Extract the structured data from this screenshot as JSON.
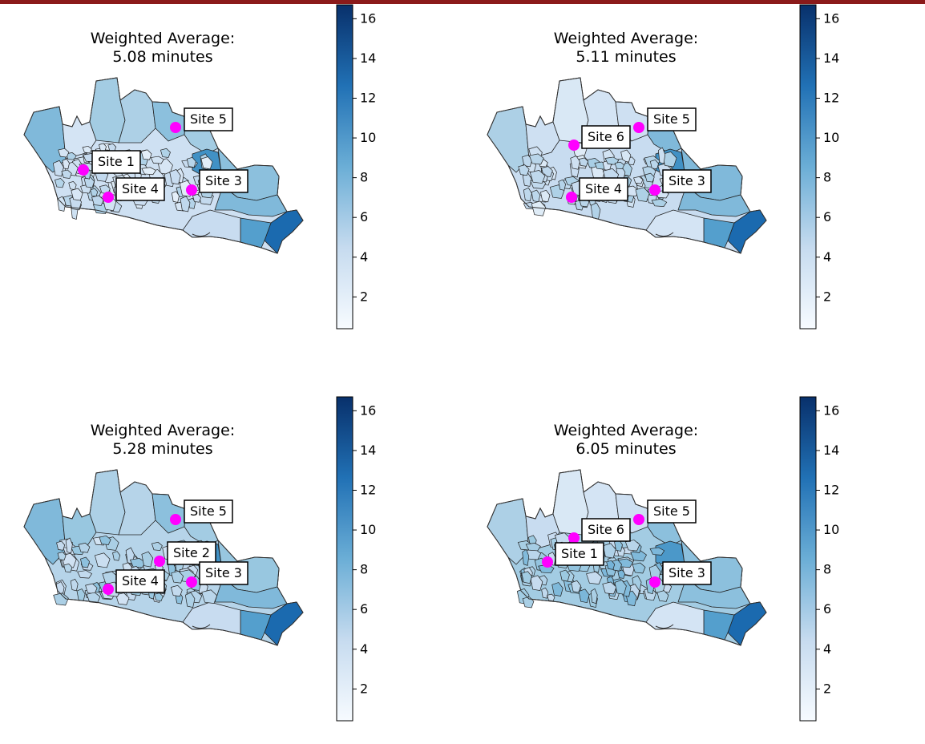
{
  "figure": {
    "colormap": "Blues",
    "colorbar": {
      "min": 0.4,
      "max": 16.7,
      "ticks": [
        2,
        4,
        6,
        8,
        10,
        12,
        14,
        16
      ]
    },
    "marker_color": "#ff00ff",
    "region_edge_color": "#222222"
  },
  "panels": [
    {
      "title_line1": "Weighted Average:",
      "title_line2": "5.08 minutes",
      "sites": [
        {
          "label": "Site 5",
          "position": "north"
        },
        {
          "label": "Site 1",
          "position": "west"
        },
        {
          "label": "Site 4",
          "position": "south-west"
        },
        {
          "label": "Site 3",
          "position": "south-east"
        }
      ]
    },
    {
      "title_line1": "Weighted Average:",
      "title_line2": "5.11 minutes",
      "sites": [
        {
          "label": "Site 5",
          "position": "north"
        },
        {
          "label": "Site 6",
          "position": "north-west"
        },
        {
          "label": "Site 4",
          "position": "south-west"
        },
        {
          "label": "Site 3",
          "position": "south-east"
        }
      ]
    },
    {
      "title_line1": "Weighted Average:",
      "title_line2": "5.28 minutes",
      "sites": [
        {
          "label": "Site 5",
          "position": "north"
        },
        {
          "label": "Site 2",
          "position": "center"
        },
        {
          "label": "Site 4",
          "position": "south-west"
        },
        {
          "label": "Site 3",
          "position": "south-east"
        }
      ]
    },
    {
      "title_line1": "Weighted Average:",
      "title_line2": "6.05 minutes",
      "sites": [
        {
          "label": "Site 5",
          "position": "north"
        },
        {
          "label": "Site 6",
          "position": "north-west"
        },
        {
          "label": "Site 1",
          "position": "west"
        },
        {
          "label": "Site 3",
          "position": "south-east"
        }
      ]
    }
  ]
}
